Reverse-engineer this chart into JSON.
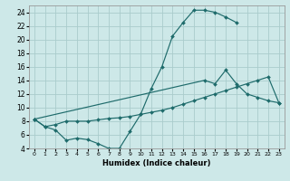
{
  "xlabel": "Humidex (Indice chaleur)",
  "bg_color": "#cde8e8",
  "grid_color": "#aacccc",
  "line_color": "#1e6b6b",
  "xlim_min": -0.5,
  "xlim_max": 23.5,
  "ylim_min": 4,
  "ylim_max": 25,
  "xticks": [
    0,
    1,
    2,
    3,
    4,
    5,
    6,
    7,
    8,
    9,
    10,
    11,
    12,
    13,
    14,
    15,
    16,
    17,
    18,
    19,
    20,
    21,
    22,
    23
  ],
  "yticks": [
    4,
    6,
    8,
    10,
    12,
    14,
    16,
    18,
    20,
    22,
    24
  ],
  "curve1_x": [
    0,
    1,
    2,
    3,
    4,
    5,
    6,
    7,
    8,
    9,
    10,
    11,
    12,
    13,
    14,
    15,
    16,
    17,
    18,
    19
  ],
  "curve1_y": [
    8.3,
    7.2,
    6.7,
    5.2,
    5.5,
    5.3,
    4.7,
    4.0,
    4.0,
    6.5,
    9.0,
    12.8,
    16.0,
    20.5,
    22.5,
    24.3,
    24.3,
    24.0,
    23.3,
    22.5
  ],
  "curve2_x": [
    0,
    1,
    2,
    3,
    4,
    5,
    6,
    7,
    8,
    9,
    10,
    11,
    12,
    13,
    14,
    15,
    16,
    17,
    18,
    19,
    20,
    21,
    22,
    23
  ],
  "curve2_y": [
    8.3,
    7.2,
    7.5,
    8.0,
    8.0,
    8.0,
    8.2,
    8.4,
    8.5,
    8.7,
    9.0,
    9.3,
    9.6,
    10.0,
    10.5,
    11.0,
    11.5,
    12.0,
    12.5,
    13.0,
    13.5,
    14.0,
    14.5,
    10.7
  ],
  "curve3_x": [
    0,
    16,
    17,
    18,
    19,
    20,
    21,
    22,
    23
  ],
  "curve3_y": [
    8.3,
    14.0,
    13.5,
    15.5,
    13.5,
    12.0,
    11.5,
    11.0,
    10.7
  ]
}
